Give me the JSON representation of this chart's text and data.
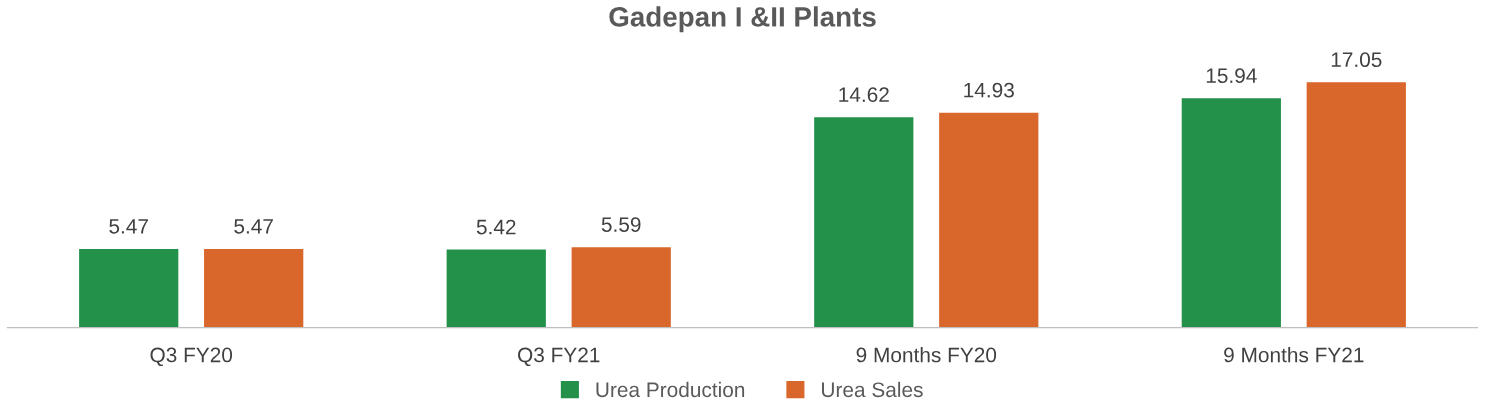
{
  "chart_data": {
    "type": "bar",
    "title": "Gadepan I &II Plants",
    "categories": [
      "Q3 FY20",
      "Q3 FY21",
      "9 Months FY20",
      "9 Months FY21"
    ],
    "series": [
      {
        "name": "Urea Production",
        "color": "#23914a",
        "values": [
          5.47,
          5.42,
          14.62,
          15.94
        ]
      },
      {
        "name": "Urea Sales",
        "color": "#d9662a",
        "values": [
          5.47,
          5.59,
          14.93,
          17.05
        ]
      }
    ],
    "data_labels": true,
    "legend": "bottom"
  }
}
